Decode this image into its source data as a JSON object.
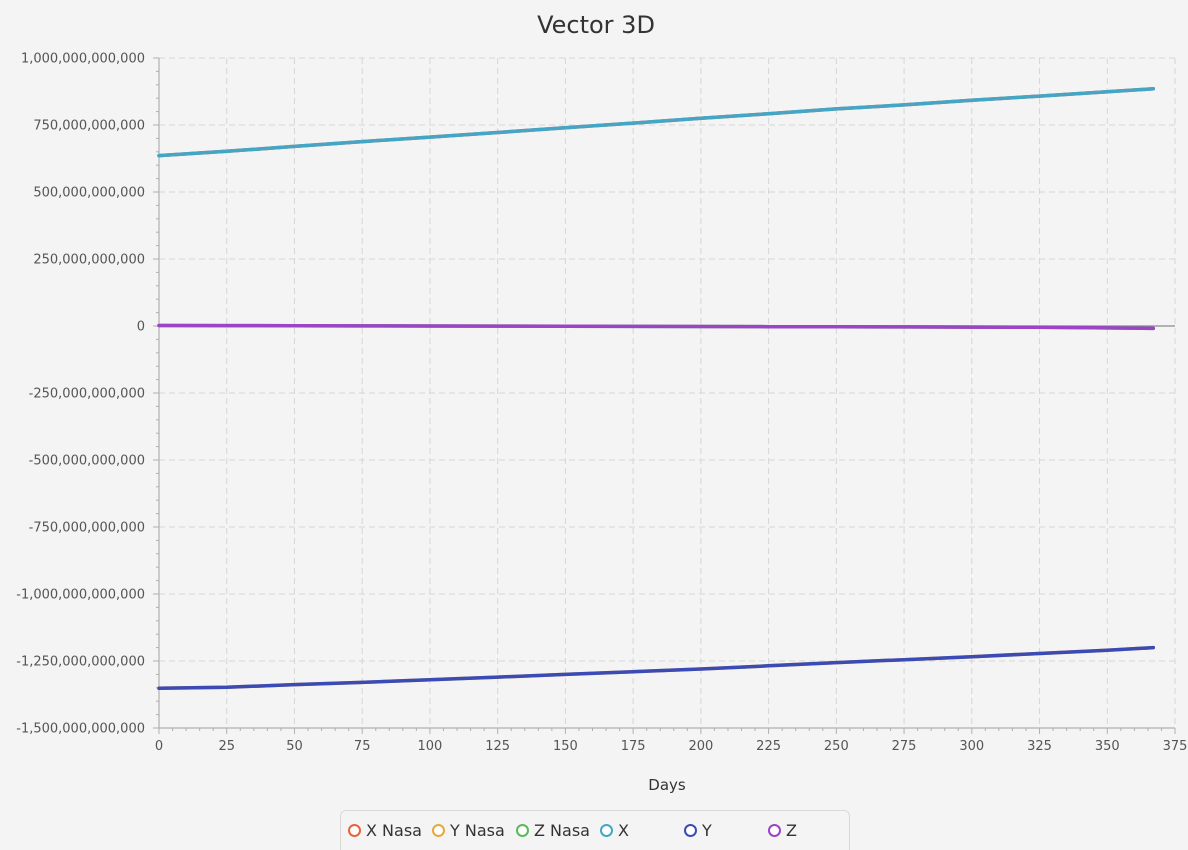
{
  "chart_data": {
    "type": "line",
    "title": "Vector 3D",
    "xlabel": "Days",
    "ylabel": "",
    "xlim": [
      0,
      375
    ],
    "ylim": [
      -1500000000000,
      1000000000000
    ],
    "x_ticks": [
      0,
      25,
      50,
      75,
      100,
      125,
      150,
      175,
      200,
      225,
      250,
      275,
      300,
      325,
      350,
      375
    ],
    "y_ticks": [
      1000000000000,
      750000000000,
      500000000000,
      250000000000,
      0,
      -250000000000,
      -500000000000,
      -750000000000,
      -1000000000000,
      -1250000000000,
      -1500000000000
    ],
    "x_tick_labels": [
      "0",
      "25",
      "50",
      "75",
      "100",
      "125",
      "150",
      "175",
      "200",
      "225",
      "250",
      "275",
      "300",
      "325",
      "350",
      "375"
    ],
    "y_tick_labels": [
      "1,000,000,000,000",
      "750,000,000,000",
      "500,000,000,000",
      "250,000,000,000",
      "0",
      "-250,000,000,000",
      "-500,000,000,000",
      "-750,000,000,000",
      "-1,000,000,000,000",
      "-1,250,000,000,000",
      "-1,500,000,000,000"
    ],
    "grid": true,
    "legend_position": "bottom",
    "x": [
      0,
      25,
      50,
      75,
      100,
      125,
      150,
      175,
      200,
      225,
      250,
      275,
      300,
      325,
      350,
      367
    ],
    "series": [
      {
        "name": "X Nasa",
        "color": "#e8623a",
        "values": [
          636000000000,
          652000000000,
          670000000000,
          688000000000,
          705000000000,
          722000000000,
          740000000000,
          757000000000,
          775000000000,
          792000000000,
          810000000000,
          825000000000,
          842000000000,
          858000000000,
          874000000000,
          885000000000
        ]
      },
      {
        "name": "Y Nasa",
        "color": "#e8a93a",
        "values": [
          -1352000000000,
          -1348000000000,
          -1338000000000,
          -1330000000000,
          -1320000000000,
          -1310000000000,
          -1300000000000,
          -1290000000000,
          -1280000000000,
          -1268000000000,
          -1256000000000,
          -1245000000000,
          -1234000000000,
          -1222000000000,
          -1210000000000,
          -1200000000000
        ]
      },
      {
        "name": "Z Nasa",
        "color": "#5cb85c",
        "values": [
          2000000000,
          1500000000,
          1000000000,
          500000000,
          0,
          -500000000,
          -1000000000,
          -1500000000,
          -2000000000,
          -2500000000,
          -3000000000,
          -3500000000,
          -4000000000,
          -5000000000,
          -7000000000,
          -9000000000
        ]
      },
      {
        "name": "X",
        "color": "#43a6c6",
        "values": [
          636000000000,
          652000000000,
          670000000000,
          688000000000,
          705000000000,
          722000000000,
          740000000000,
          757000000000,
          775000000000,
          792000000000,
          810000000000,
          825000000000,
          842000000000,
          858000000000,
          874000000000,
          885000000000
        ]
      },
      {
        "name": "Y",
        "color": "#3b4bb5",
        "values": [
          -1352000000000,
          -1348000000000,
          -1338000000000,
          -1330000000000,
          -1320000000000,
          -1310000000000,
          -1300000000000,
          -1290000000000,
          -1280000000000,
          -1268000000000,
          -1256000000000,
          -1245000000000,
          -1234000000000,
          -1222000000000,
          -1210000000000,
          -1200000000000
        ]
      },
      {
        "name": "Z",
        "color": "#9b44c6",
        "values": [
          2000000000,
          1500000000,
          1000000000,
          500000000,
          0,
          -500000000,
          -1000000000,
          -1500000000,
          -2000000000,
          -2500000000,
          -3000000000,
          -3500000000,
          -4000000000,
          -5000000000,
          -7000000000,
          -9000000000
        ]
      }
    ]
  }
}
